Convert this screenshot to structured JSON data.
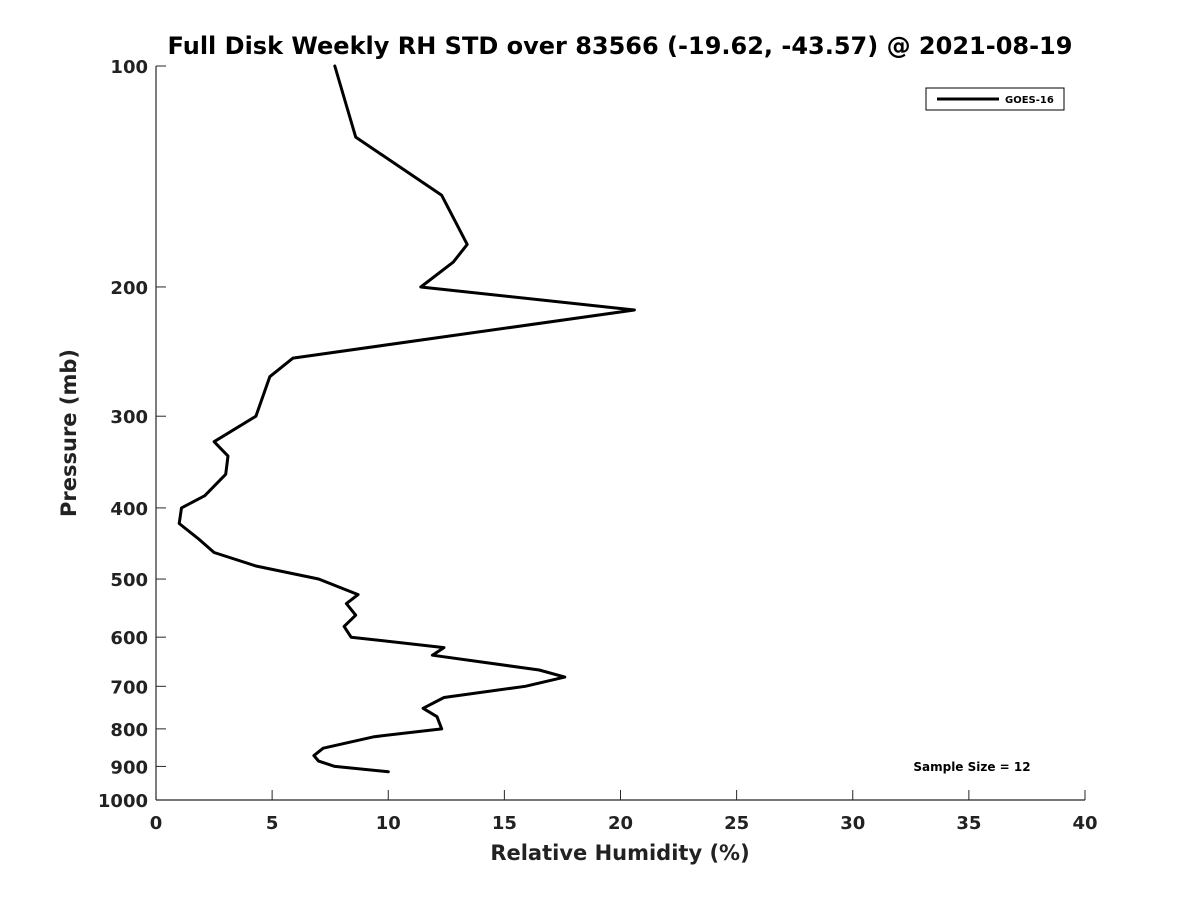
{
  "chart_data": {
    "type": "line",
    "title": "Full Disk Weekly RH STD over 83566 (-19.62, -43.57) @ 2021-08-19",
    "xlabel": "Relative Humidity (%)",
    "ylabel": "Pressure (mb)",
    "xlim": [
      0,
      40
    ],
    "ylim": [
      100,
      1000
    ],
    "y_scale": "log",
    "y_reversed": true,
    "x_ticks": [
      0,
      5,
      10,
      15,
      20,
      25,
      30,
      35,
      40
    ],
    "y_ticks": [
      100,
      200,
      300,
      400,
      500,
      600,
      700,
      800,
      900,
      1000
    ],
    "legend": {
      "entries": [
        "GOES-16"
      ],
      "location": "top-right"
    },
    "annotation": "Sample Size = 12",
    "series": [
      {
        "name": "GOES-16",
        "color": "#000000",
        "points": [
          {
            "x": 7.7,
            "p": 100
          },
          {
            "x": 8.6,
            "p": 125
          },
          {
            "x": 12.3,
            "p": 150
          },
          {
            "x": 13.4,
            "p": 175
          },
          {
            "x": 12.8,
            "p": 185
          },
          {
            "x": 11.4,
            "p": 200
          },
          {
            "x": 20.6,
            "p": 215
          },
          {
            "x": 5.9,
            "p": 250
          },
          {
            "x": 4.9,
            "p": 265
          },
          {
            "x": 4.3,
            "p": 300
          },
          {
            "x": 2.5,
            "p": 325
          },
          {
            "x": 3.1,
            "p": 340
          },
          {
            "x": 3.0,
            "p": 360
          },
          {
            "x": 2.1,
            "p": 385
          },
          {
            "x": 1.1,
            "p": 400
          },
          {
            "x": 1.0,
            "p": 420
          },
          {
            "x": 1.8,
            "p": 440
          },
          {
            "x": 2.5,
            "p": 460
          },
          {
            "x": 4.3,
            "p": 480
          },
          {
            "x": 7.0,
            "p": 500
          },
          {
            "x": 8.7,
            "p": 525
          },
          {
            "x": 8.2,
            "p": 540
          },
          {
            "x": 8.6,
            "p": 560
          },
          {
            "x": 8.1,
            "p": 580
          },
          {
            "x": 8.4,
            "p": 600
          },
          {
            "x": 12.4,
            "p": 620
          },
          {
            "x": 11.9,
            "p": 635
          },
          {
            "x": 16.5,
            "p": 665
          },
          {
            "x": 17.6,
            "p": 680
          },
          {
            "x": 15.9,
            "p": 700
          },
          {
            "x": 12.4,
            "p": 725
          },
          {
            "x": 11.5,
            "p": 750
          },
          {
            "x": 12.1,
            "p": 770
          },
          {
            "x": 12.3,
            "p": 800
          },
          {
            "x": 9.4,
            "p": 820
          },
          {
            "x": 7.2,
            "p": 850
          },
          {
            "x": 6.8,
            "p": 870
          },
          {
            "x": 7.0,
            "p": 885
          },
          {
            "x": 7.7,
            "p": 900
          },
          {
            "x": 10.0,
            "p": 915
          }
        ]
      }
    ]
  }
}
